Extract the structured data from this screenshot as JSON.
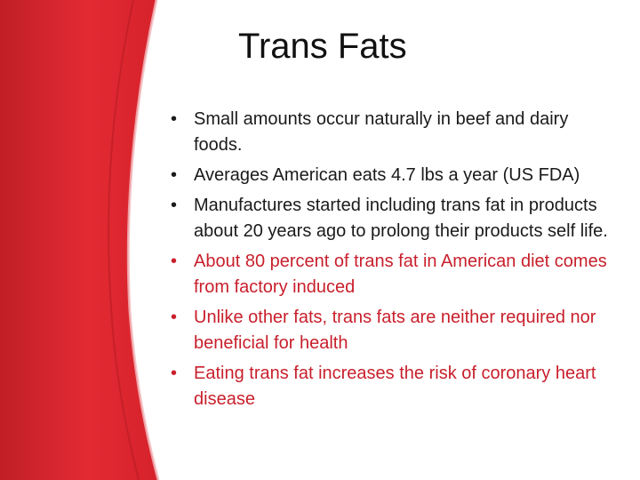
{
  "slide": {
    "title": "Trans Fats",
    "bullet_symbol": "•",
    "bullets": [
      {
        "text": "Small amounts occur naturally in beef and dairy foods.",
        "color": "#1a1a1a"
      },
      {
        "text": "Averages American eats 4.7 lbs a year (US FDA)",
        "color": "#1a1a1a"
      },
      {
        "text": "Manufactures started including trans fat in products about 20 years ago to prolong their products self life.",
        "color": "#1a1a1a"
      },
      {
        "text": "About 80 percent of trans fat in American diet comes from factory induced",
        "color": "#c8202c"
      },
      {
        "text": "Unlike other fats, trans fats are neither required nor beneficial for health",
        "color": "#c8202c"
      },
      {
        "text": "Eating trans fat increases the risk of coronary heart disease",
        "color": "#c8202c"
      }
    ]
  },
  "theme": {
    "accent_red": "#e32a33",
    "accent_dark_red": "#c01f27",
    "background": "#ffffff"
  }
}
